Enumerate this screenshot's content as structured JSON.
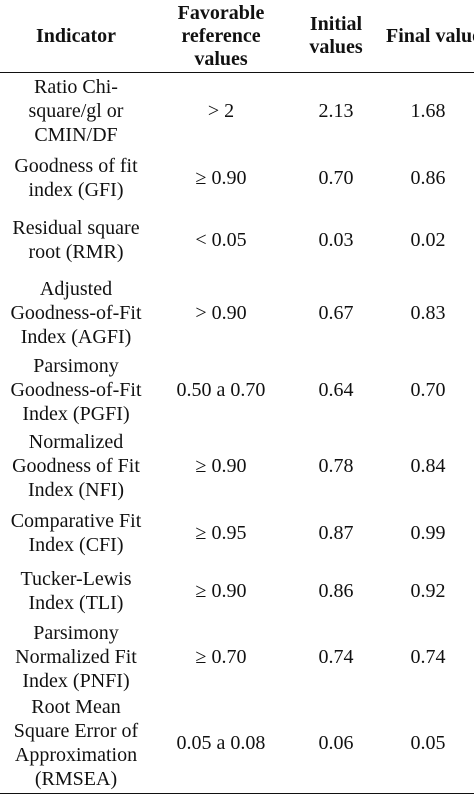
{
  "table": {
    "headers": {
      "indicator": "Indicator",
      "favorable": "Favorable reference values",
      "initial": "Initial values",
      "final": "Final values"
    },
    "rows": [
      {
        "indicator": "Ratio Chi-square/gl or CMIN/DF",
        "favorable": "> 2",
        "initial": "2.13",
        "final": "1.68"
      },
      {
        "indicator": "Goodness of fit index (GFI)",
        "favorable": "≥ 0.90",
        "initial": "0.70",
        "final": "0.86"
      },
      {
        "indicator": "Residual square root (RMR)",
        "favorable": "< 0.05",
        "initial": "0.03",
        "final": "0.02"
      },
      {
        "indicator": "Adjusted Goodness-of-Fit Index (AGFI)",
        "favorable": "> 0.90",
        "initial": "0.67",
        "final": "0.83"
      },
      {
        "indicator": "Parsimony Goodness-of-Fit Index (PGFI)",
        "favorable": "0.50 a 0.70",
        "initial": "0.64",
        "final": "0.70"
      },
      {
        "indicator": "Normalized Goodness of Fit Index (NFI)",
        "favorable": "≥ 0.90",
        "initial": "0.78",
        "final": "0.84"
      },
      {
        "indicator": "Comparative Fit Index (CFI)",
        "favorable": "≥ 0.95",
        "initial": "0.87",
        "final": "0.99"
      },
      {
        "indicator": "Tucker-Lewis Index (TLI)",
        "favorable": "≥ 0.90",
        "initial": "0.86",
        "final": "0.92"
      },
      {
        "indicator": "Parsimony Normalized Fit Index (PNFI)",
        "favorable": "≥ 0.70",
        "initial": "0.74",
        "final": "0.74"
      },
      {
        "indicator": "Root Mean Square Error of Approximation (RMSEA)",
        "favorable": "0.05 a 0.08",
        "initial": "0.06",
        "final": "0.05"
      }
    ]
  }
}
